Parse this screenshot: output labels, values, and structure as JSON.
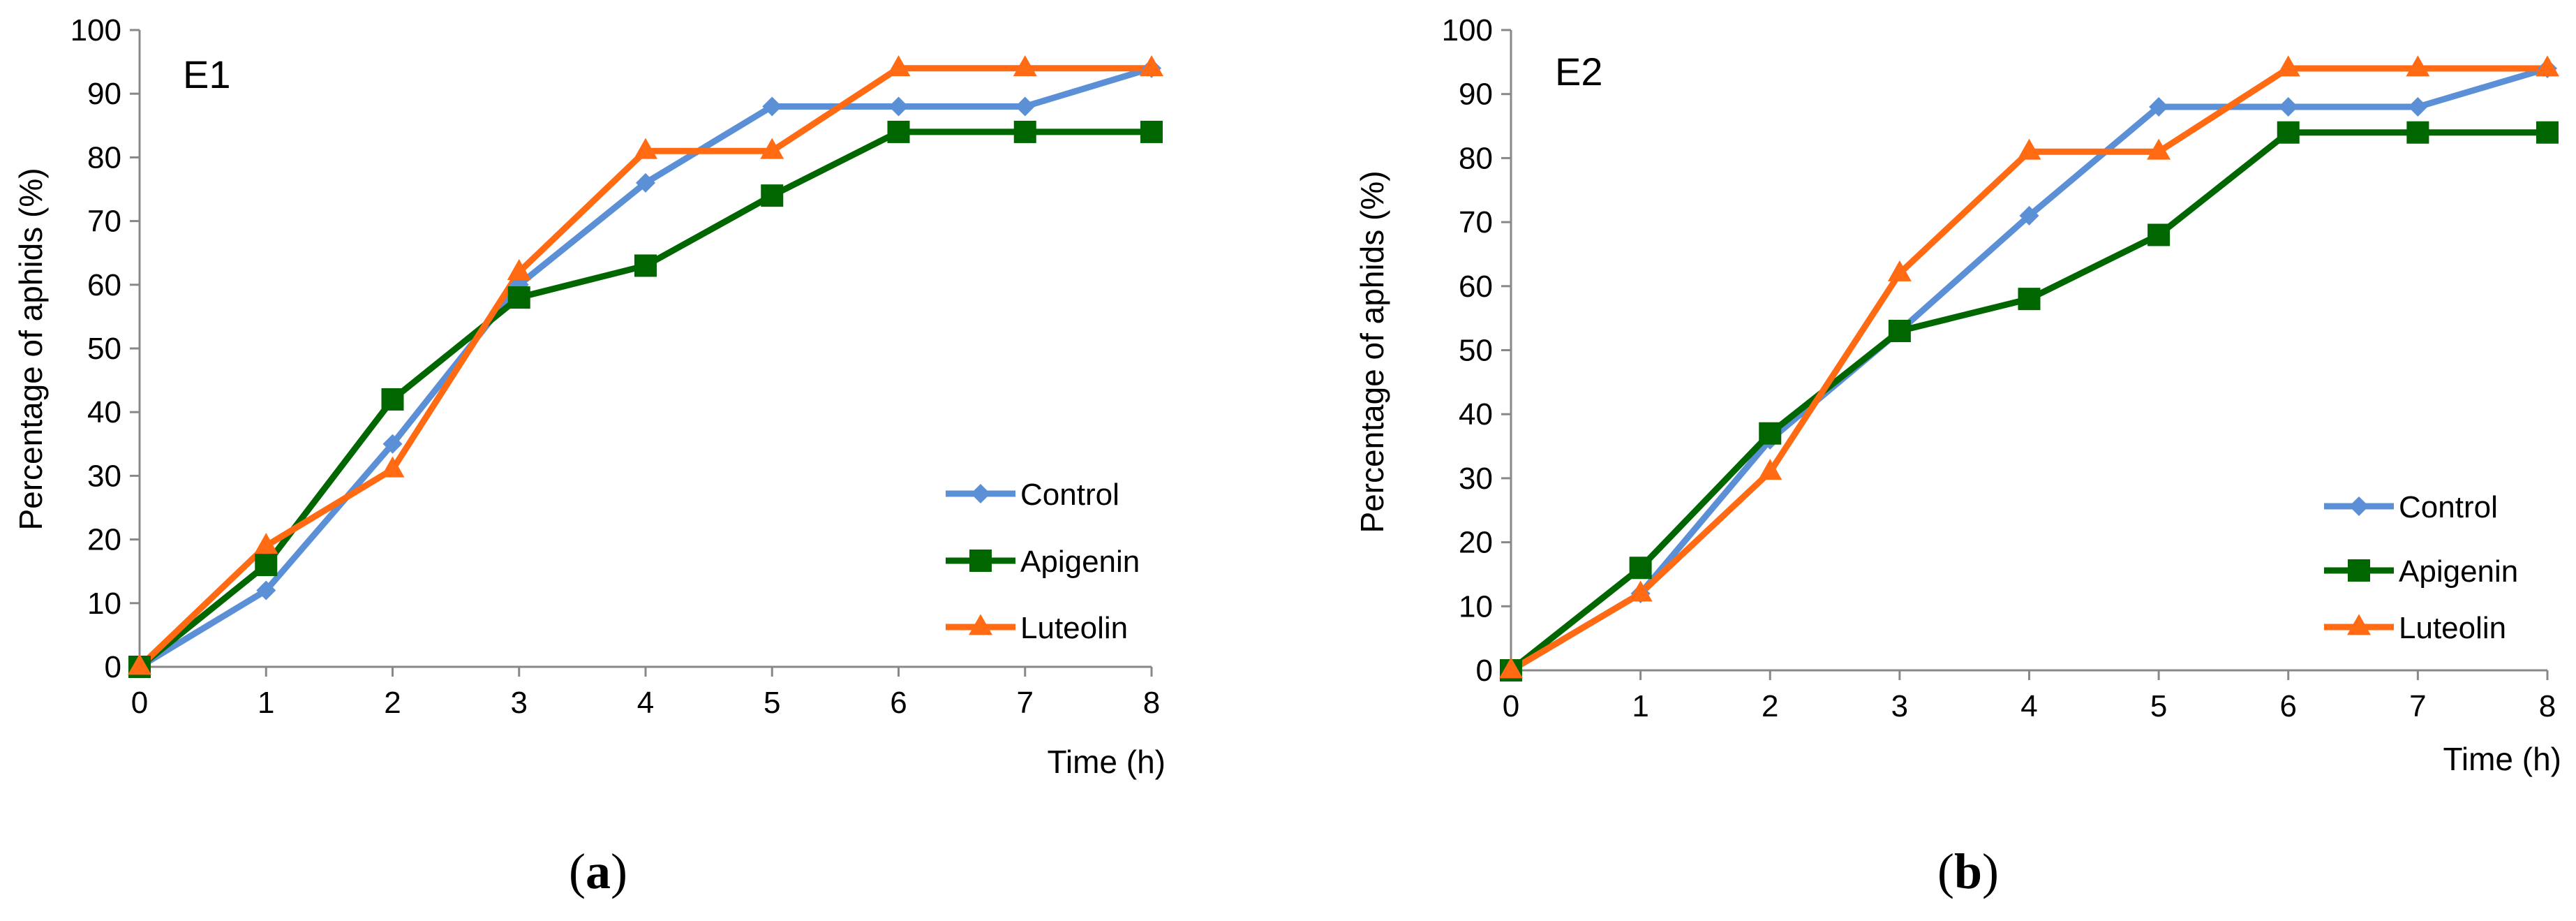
{
  "chart_data": [
    {
      "type": "line",
      "panel_tag": "E1",
      "caption_letter": "a",
      "xlabel": "Time (h)",
      "ylabel": "Percentage of aphids (%)",
      "xlim": [
        0,
        8
      ],
      "ylim": [
        0,
        100
      ],
      "x_ticks": [
        0,
        1,
        2,
        3,
        4,
        5,
        6,
        7,
        8
      ],
      "y_ticks": [
        0,
        10,
        20,
        30,
        40,
        50,
        60,
        70,
        80,
        90,
        100
      ],
      "x": [
        0,
        1,
        2,
        3,
        4,
        5,
        6,
        7,
        8
      ],
      "legend_position": "bottom-right",
      "series": [
        {
          "name": "Control",
          "color": "#5b8fd6",
          "marker": "diamond",
          "values": [
            0,
            12,
            35,
            60,
            76,
            88,
            88,
            88,
            94
          ]
        },
        {
          "name": "Apigenin",
          "color": "#006600",
          "marker": "square",
          "values": [
            0,
            16,
            42,
            58,
            63,
            74,
            84,
            84,
            84
          ]
        },
        {
          "name": "Luteolin",
          "color": "#ff6a13",
          "marker": "triangle",
          "values": [
            0,
            19,
            31,
            62,
            81,
            81,
            94,
            94,
            94
          ]
        }
      ]
    },
    {
      "type": "line",
      "panel_tag": "E2",
      "caption_letter": "b",
      "xlabel": "Time (h)",
      "ylabel": "Percentage of aphids (%)",
      "xlim": [
        0,
        8
      ],
      "ylim": [
        0,
        100
      ],
      "x_ticks": [
        0,
        1,
        2,
        3,
        4,
        5,
        6,
        7,
        8
      ],
      "y_ticks": [
        0,
        10,
        20,
        30,
        40,
        50,
        60,
        70,
        80,
        90,
        100
      ],
      "x": [
        0,
        1,
        2,
        3,
        4,
        5,
        6,
        7,
        8
      ],
      "legend_position": "bottom-right",
      "series": [
        {
          "name": "Control",
          "color": "#5b8fd6",
          "marker": "diamond",
          "values": [
            0,
            12,
            36,
            53,
            71,
            88,
            88,
            88,
            94
          ]
        },
        {
          "name": "Apigenin",
          "color": "#006600",
          "marker": "square",
          "values": [
            0,
            16,
            37,
            53,
            58,
            68,
            84,
            84,
            84
          ]
        },
        {
          "name": "Luteolin",
          "color": "#ff6a13",
          "marker": "triangle",
          "values": [
            0,
            12,
            31,
            62,
            81,
            81,
            94,
            94,
            94
          ]
        }
      ]
    }
  ]
}
